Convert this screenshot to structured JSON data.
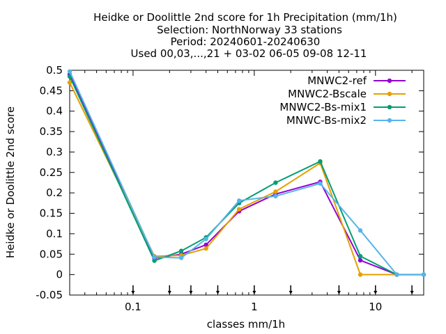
{
  "chart_data": {
    "type": "line",
    "title_lines": [
      "Heidke or Doolittle 2nd score  for 1h Precipitation (mm/1h)",
      "Selection: NorthNorway     33 stations",
      "Period: 20240601-20240630",
      "Used 00,03,...,21 + 03-02 06-05 09-08 12-11"
    ],
    "xlabel": "classes mm/1h",
    "ylabel": "Heidke or Doolittle 2nd score",
    "x_scale": "log",
    "xlim": [
      0.03,
      25
    ],
    "ylim": [
      -0.05,
      0.5
    ],
    "y_ticks": [
      -0.05,
      0,
      0.05,
      0.1,
      0.15,
      0.2,
      0.25,
      0.3,
      0.35,
      0.4,
      0.45,
      0.5
    ],
    "y_tick_labels": [
      "-0.05",
      "0",
      "0.05",
      "0.1",
      "0.15",
      "0.2",
      "0.25",
      "0.3",
      "0.35",
      "0.4",
      "0.45",
      "0.5"
    ],
    "x_ticks": [
      0.1,
      1,
      10
    ],
    "x_tick_labels": [
      "0.1",
      "1",
      "10"
    ],
    "arrow_markers_x": [
      0.1,
      0.2,
      0.3,
      0.5,
      1,
      2,
      5,
      10,
      20
    ],
    "grid": false,
    "legend_position": "top-right",
    "x": [
      0.03,
      0.15,
      0.25,
      0.4,
      0.75,
      1.5,
      3.5,
      7.5,
      15,
      25
    ],
    "series": [
      {
        "name": "MNWC2-ref",
        "color": "#9400d3",
        "values": [
          0.49,
          0.04,
          0.05,
          0.073,
          0.155,
          0.197,
          0.227,
          0.035,
          0.0,
          0.0
        ]
      },
      {
        "name": "MNWC2-Bscale",
        "color": "#e69f00",
        "values": [
          0.47,
          0.045,
          0.047,
          0.064,
          0.16,
          0.203,
          0.273,
          0.0,
          0.0,
          0.0
        ]
      },
      {
        "name": "MNWC2-Bs-mix1",
        "color": "#009e73",
        "values": [
          0.485,
          0.034,
          0.058,
          0.091,
          0.175,
          0.225,
          0.277,
          0.045,
          0.0,
          0.0
        ]
      },
      {
        "name": "MNWC-Bs-mix2",
        "color": "#56b4e9",
        "values": [
          0.497,
          0.043,
          0.041,
          0.087,
          0.181,
          0.192,
          0.223,
          0.108,
          0.0,
          0.0
        ]
      }
    ]
  }
}
